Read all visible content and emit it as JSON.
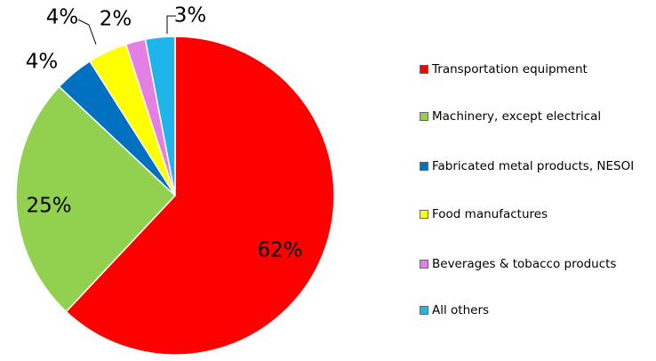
{
  "chart_data": {
    "type": "pie",
    "categories": [
      "Transportation equipment",
      "Machinery, except electrical",
      "Fabricated metal products, NESOI",
      "Food manufactures",
      "Beverages & tobacco products",
      "All others"
    ],
    "values": [
      62,
      25,
      4,
      4,
      2,
      3
    ],
    "value_labels": [
      "62%",
      "25%",
      "4%",
      "4%",
      "2%",
      "3%"
    ],
    "colors": [
      "#ff0000",
      "#92d050",
      "#0070c0",
      "#ffff00",
      "#e47fe4",
      "#1fb5ea"
    ],
    "legend": "right"
  }
}
